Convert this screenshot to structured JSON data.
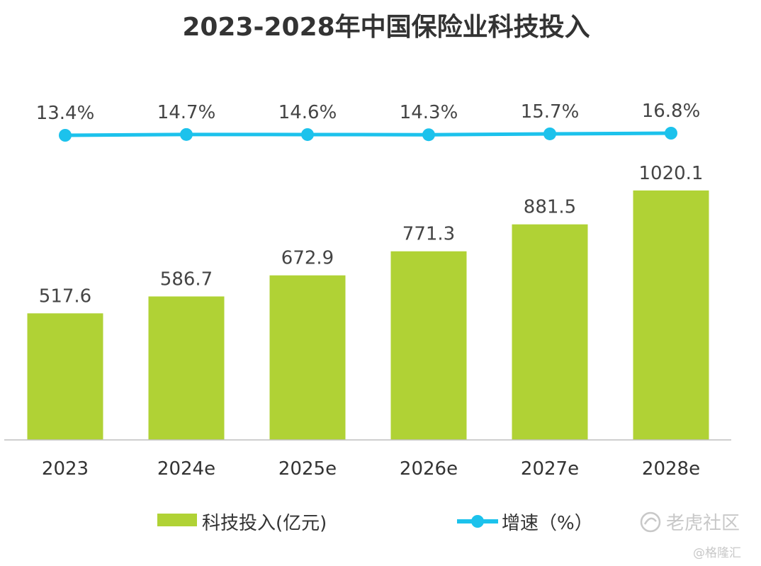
{
  "chart_data": {
    "type": "bar",
    "title": "2023-2028年中国保险业科技投入",
    "categories": [
      "2023",
      "2024e",
      "2025e",
      "2026e",
      "2027e",
      "2028e"
    ],
    "series": [
      {
        "name": "科技投入(亿元)",
        "type": "bar",
        "values": [
          517.6,
          586.7,
          672.9,
          771.3,
          881.5,
          1020.1
        ],
        "value_labels": [
          "517.6",
          "586.7",
          "672.9",
          "771.3",
          "881.5",
          "1020.1"
        ],
        "color": "#B0D235"
      },
      {
        "name": "增速（%）",
        "type": "line",
        "values": [
          13.4,
          14.7,
          14.6,
          14.3,
          15.7,
          16.8
        ],
        "value_labels": [
          "13.4%",
          "14.7%",
          "14.6%",
          "14.3%",
          "15.7%",
          "16.8%"
        ],
        "color": "#1CC2EC"
      }
    ],
    "xlabel": "",
    "ylabel": "",
    "ylim": [
      0,
      1200
    ],
    "legend_position": "bottom"
  },
  "colors": {
    "axis": "#bfbfbf",
    "title": "#333333",
    "label": "#444444",
    "watermark": "#c8c8c8"
  },
  "watermark": {
    "logo_text": "老虎社区",
    "sub_text": "@格隆汇"
  }
}
